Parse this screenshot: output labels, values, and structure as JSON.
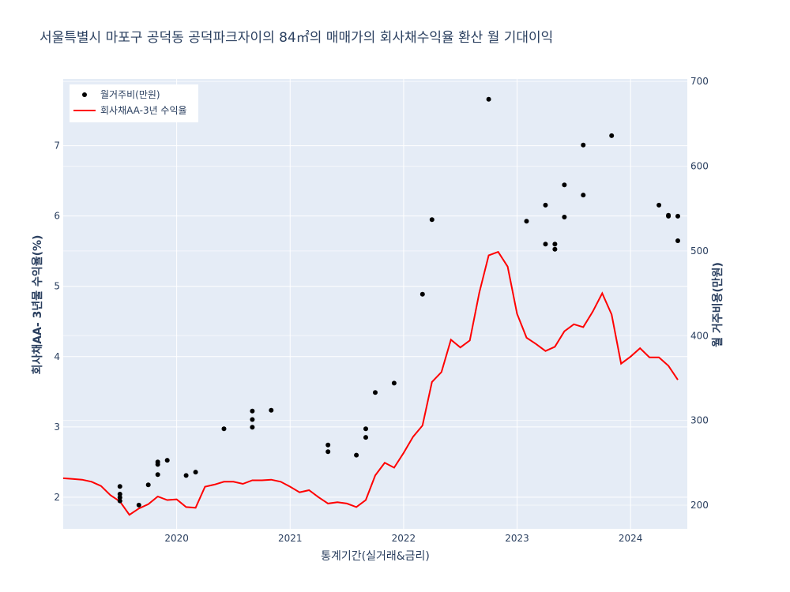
{
  "chart_data": {
    "type": "line+scatter",
    "title": "서울특별시 마포구 공덕동 공덕파크자이의 84㎡의 매매가의 회사채수익율 환산 월 기대이익",
    "xlabel": "통계기간(실거래&금리)",
    "ylabel_left": "회사채AA- 3년물 수익율(%)",
    "ylabel_right": "월 거주비용(만원)",
    "x_range": [
      "2019-01",
      "2024-07"
    ],
    "x_ticks": [
      "2020",
      "2021",
      "2022",
      "2023",
      "2024"
    ],
    "y_left_range": [
      1.55,
      7.95
    ],
    "y_left_ticks": [
      "2",
      "3",
      "4",
      "5",
      "6",
      "7"
    ],
    "y_right_range": [
      172,
      703
    ],
    "y_right_ticks": [
      "200",
      "300",
      "400",
      "500",
      "600",
      "700"
    ],
    "grid": true,
    "legend_position": "top-left",
    "series": [
      {
        "name": "월거주비(만원)",
        "mode": "markers",
        "axis": "right",
        "color": "#000000",
        "points": [
          [
            "2019-07",
            222
          ],
          [
            "2019-07",
            213
          ],
          [
            "2019-07",
            209
          ],
          [
            "2019-07",
            205
          ],
          [
            "2019-09",
            200
          ],
          [
            "2019-10",
            224
          ],
          [
            "2019-11",
            236
          ],
          [
            "2019-11",
            248
          ],
          [
            "2019-11",
            251
          ],
          [
            "2019-12",
            253
          ],
          [
            "2020-02",
            235
          ],
          [
            "2020-03",
            239
          ],
          [
            "2020-06",
            290
          ],
          [
            "2020-09",
            311
          ],
          [
            "2020-09",
            301
          ],
          [
            "2020-09",
            292
          ],
          [
            "2020-11",
            312
          ],
          [
            "2021-05",
            271
          ],
          [
            "2021-05",
            263
          ],
          [
            "2021-08",
            259
          ],
          [
            "2021-09",
            290
          ],
          [
            "2021-09",
            280
          ],
          [
            "2021-10",
            333
          ],
          [
            "2021-12",
            344
          ],
          [
            "2022-03",
            449
          ],
          [
            "2022-04",
            537
          ],
          [
            "2022-10",
            679
          ],
          [
            "2023-02",
            535
          ],
          [
            "2023-04",
            508
          ],
          [
            "2023-04",
            554
          ],
          [
            "2023-05",
            508
          ],
          [
            "2023-05",
            502
          ],
          [
            "2023-06",
            540
          ],
          [
            "2023-06",
            578
          ],
          [
            "2023-08",
            625
          ],
          [
            "2023-08",
            566
          ],
          [
            "2023-11",
            636
          ],
          [
            "2024-04",
            554
          ],
          [
            "2024-05",
            542
          ],
          [
            "2024-05",
            541
          ],
          [
            "2024-06",
            541
          ],
          [
            "2024-06",
            512
          ]
        ]
      },
      {
        "name": "회사채AA-3년 수익율",
        "mode": "line",
        "axis": "left",
        "color": "#ff0000",
        "points": [
          [
            "2019-01",
            2.27
          ],
          [
            "2019-02",
            2.26
          ],
          [
            "2019-03",
            2.25
          ],
          [
            "2019-04",
            2.22
          ],
          [
            "2019-05",
            2.16
          ],
          [
            "2019-06",
            2.03
          ],
          [
            "2019-07",
            1.94
          ],
          [
            "2019-08",
            1.75
          ],
          [
            "2019-09",
            1.84
          ],
          [
            "2019-10",
            1.9
          ],
          [
            "2019-11",
            2.01
          ],
          [
            "2019-12",
            1.96
          ],
          [
            "2020-01",
            1.97
          ],
          [
            "2020-02",
            1.86
          ],
          [
            "2020-03",
            1.85
          ],
          [
            "2020-04",
            2.15
          ],
          [
            "2020-05",
            2.18
          ],
          [
            "2020-06",
            2.22
          ],
          [
            "2020-07",
            2.22
          ],
          [
            "2020-08",
            2.19
          ],
          [
            "2020-09",
            2.24
          ],
          [
            "2020-10",
            2.24
          ],
          [
            "2020-11",
            2.25
          ],
          [
            "2020-12",
            2.22
          ],
          [
            "2021-01",
            2.15
          ],
          [
            "2021-02",
            2.07
          ],
          [
            "2021-03",
            2.1
          ],
          [
            "2021-04",
            2.0
          ],
          [
            "2021-05",
            1.91
          ],
          [
            "2021-06",
            1.93
          ],
          [
            "2021-07",
            1.91
          ],
          [
            "2021-08",
            1.86
          ],
          [
            "2021-09",
            1.96
          ],
          [
            "2021-10",
            2.31
          ],
          [
            "2021-11",
            2.49
          ],
          [
            "2021-12",
            2.42
          ],
          [
            "2022-01",
            2.63
          ],
          [
            "2022-02",
            2.86
          ],
          [
            "2022-03",
            3.02
          ],
          [
            "2022-04",
            3.64
          ],
          [
            "2022-05",
            3.78
          ],
          [
            "2022-06",
            4.24
          ],
          [
            "2022-07",
            4.13
          ],
          [
            "2022-08",
            4.23
          ],
          [
            "2022-09",
            4.91
          ],
          [
            "2022-10",
            5.44
          ],
          [
            "2022-11",
            5.49
          ],
          [
            "2022-12",
            5.28
          ],
          [
            "2023-01",
            4.61
          ],
          [
            "2023-02",
            4.27
          ],
          [
            "2023-03",
            4.18
          ],
          [
            "2023-04",
            4.08
          ],
          [
            "2023-05",
            4.14
          ],
          [
            "2023-06",
            4.36
          ],
          [
            "2023-07",
            4.46
          ],
          [
            "2023-08",
            4.42
          ],
          [
            "2023-09",
            4.64
          ],
          [
            "2023-10",
            4.9
          ],
          [
            "2023-11",
            4.6
          ],
          [
            "2023-12",
            3.9
          ],
          [
            "2024-01",
            4.0
          ],
          [
            "2024-02",
            4.12
          ],
          [
            "2024-03",
            3.99
          ],
          [
            "2024-04",
            3.99
          ],
          [
            "2024-05",
            3.87
          ],
          [
            "2024-06",
            3.67
          ]
        ]
      }
    ]
  },
  "legend": {
    "items": [
      {
        "label": "월거주비(만원)"
      },
      {
        "label": "회사채AA-3년 수익율"
      }
    ]
  }
}
